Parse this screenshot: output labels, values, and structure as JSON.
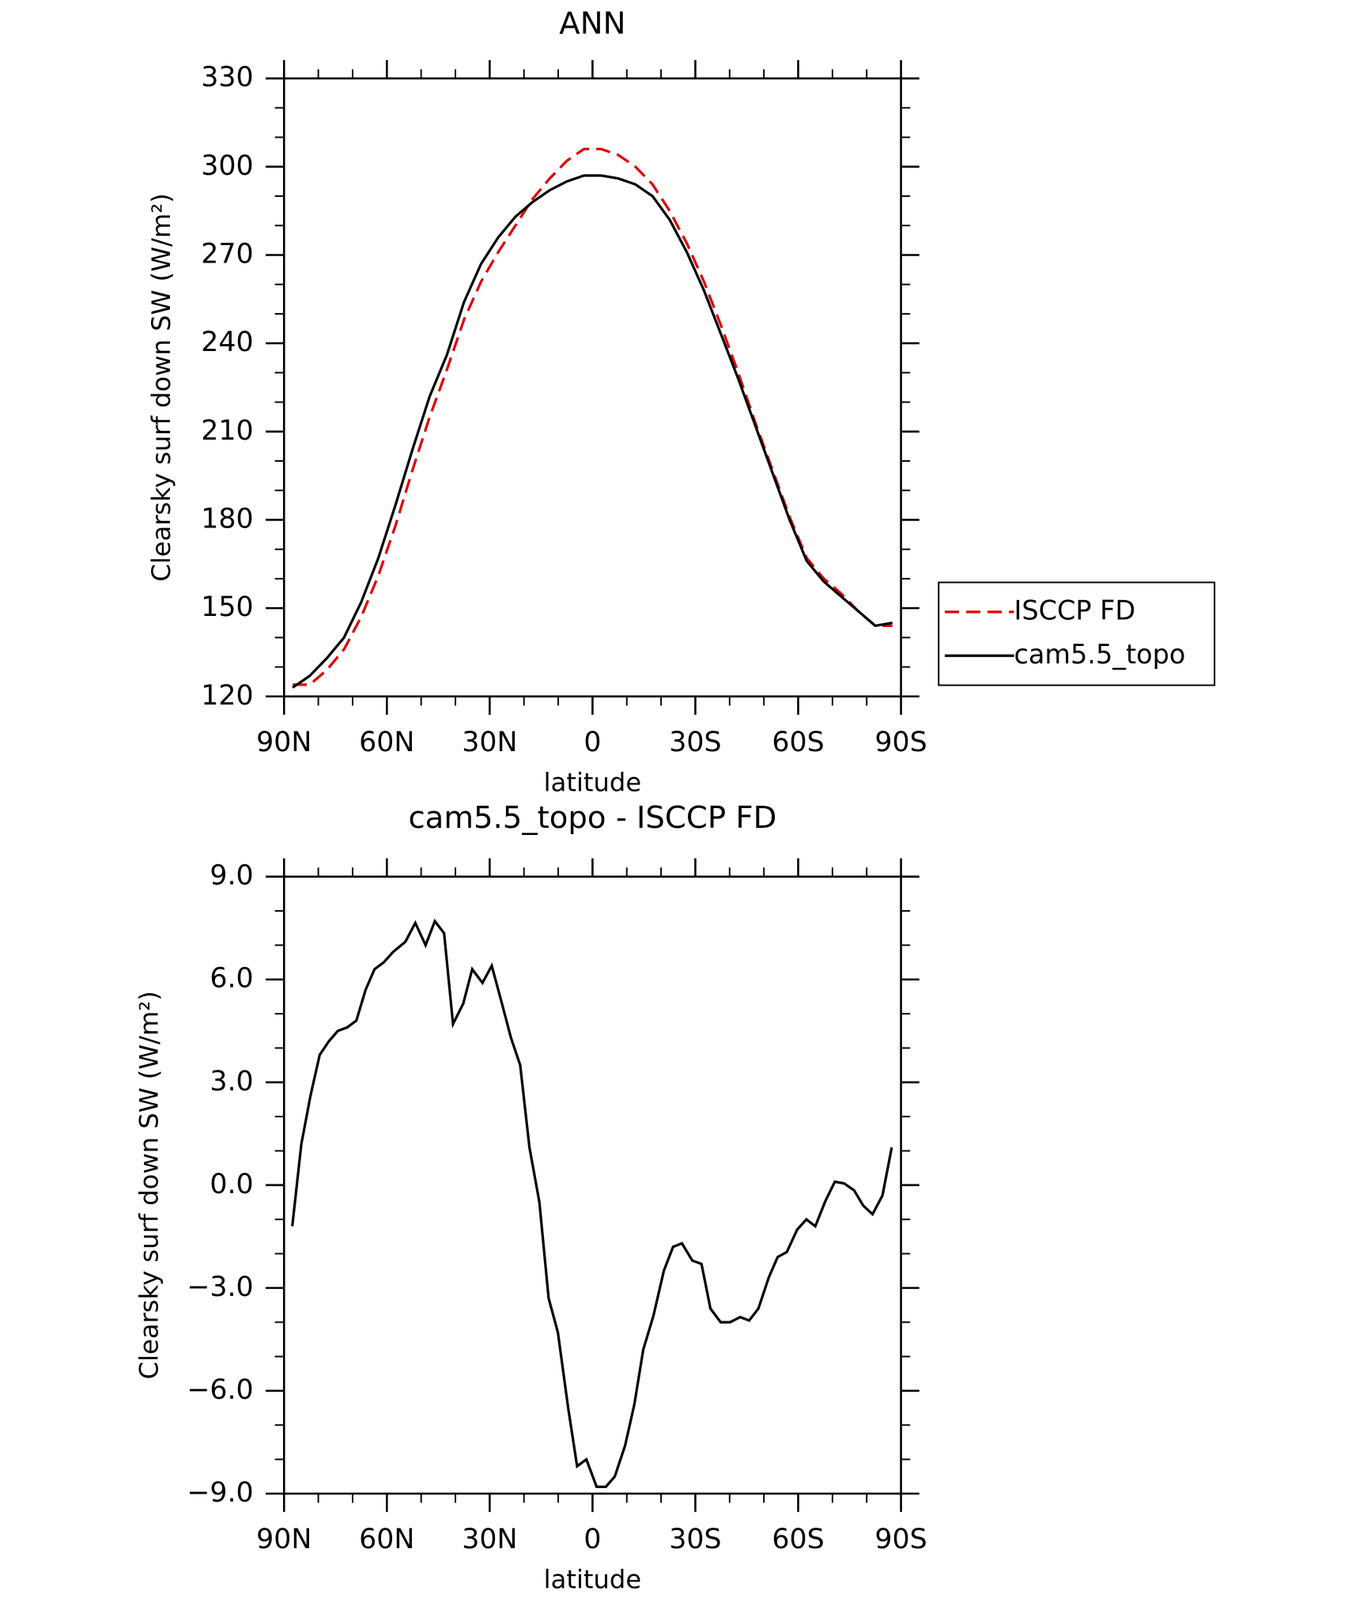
{
  "chart_data": [
    {
      "type": "line",
      "title": "ANN",
      "x_label": "latitude",
      "y_label": "Clearsky surf down SW (W/m²)",
      "x": [
        87.5,
        82.5,
        77.5,
        72.5,
        67.5,
        62.5,
        57.5,
        52.5,
        47.5,
        42.5,
        37.5,
        32.5,
        27.5,
        22.5,
        17.5,
        12.5,
        7.5,
        2.5,
        -2.5,
        -7.5,
        -12.5,
        -17.5,
        -22.5,
        -27.5,
        -32.5,
        -37.5,
        -42.5,
        -47.5,
        -52.5,
        -57.5,
        -62.5,
        -67.5,
        -72.5,
        -77.5,
        -82.5,
        -87.5
      ],
      "series": [
        {
          "name": "ISCCP FD",
          "color": "#e00000",
          "dash": true,
          "values": [
            124,
            124,
            129,
            136,
            147,
            161,
            178,
            197,
            215,
            231,
            248,
            261,
            271,
            280,
            289,
            296,
            302,
            306,
            306,
            304,
            300,
            294,
            285,
            274,
            261,
            246,
            230,
            213,
            197,
            181,
            167,
            160,
            155,
            149,
            144,
            144
          ]
        },
        {
          "name": "cam5.5_topo",
          "color": "#000000",
          "dash": false,
          "values": [
            123,
            127,
            133,
            140,
            152,
            167,
            185,
            204,
            222,
            236,
            254,
            267,
            276,
            283,
            288,
            292,
            295,
            297,
            297,
            296,
            294,
            290,
            282,
            271,
            258,
            243,
            228,
            212,
            196,
            180,
            166,
            159,
            154,
            149,
            144,
            145
          ]
        }
      ],
      "xlim": [
        90,
        -90
      ],
      "xticks": [
        {
          "value": 90,
          "label": "90N"
        },
        {
          "value": 60,
          "label": "60N"
        },
        {
          "value": 30,
          "label": "30N"
        },
        0,
        {
          "value": -30,
          "label": "30S"
        },
        {
          "value": -60,
          "label": "60S"
        },
        {
          "value": -90,
          "label": "90S"
        }
      ],
      "xminor": [
        80,
        70,
        50,
        40,
        20,
        10,
        -10,
        -20,
        -40,
        -50,
        -70,
        -80
      ],
      "ylim": [
        120,
        330
      ],
      "yticks": [
        120,
        150,
        180,
        210,
        240,
        270,
        300,
        330
      ],
      "yminor": [
        130,
        140,
        160,
        170,
        190,
        200,
        220,
        230,
        250,
        260,
        280,
        290,
        310,
        320
      ],
      "legend": "outside-right"
    },
    {
      "type": "line",
      "title": "cam5.5_topo - ISCCP FD",
      "x_label": "latitude",
      "y_label": "Clearsky surf down SW (W/m²)",
      "x": [
        87.6,
        84.95,
        82.3,
        79.6,
        76.9,
        74.3,
        71.6,
        68.9,
        66.2,
        63.6,
        60.9,
        58.2,
        54.6,
        51.7,
        48.7,
        46.0,
        43.3,
        40.7,
        37.7,
        35.1,
        32.1,
        29.4,
        26.7,
        23.8,
        21.1,
        18.4,
        15.5,
        12.8,
        10.1,
        7.1,
        4.5,
        1.8,
        -1.2,
        -3.9,
        -6.5,
        -9.5,
        -12.2,
        -14.8,
        -17.8,
        -20.8,
        -23.5,
        -26.1,
        -29.1,
        -31.8,
        -34.4,
        -37.4,
        -40.1,
        -43.1,
        -45.7,
        -48.4,
        -51.4,
        -54.0,
        -56.7,
        -59.7,
        -62.4,
        -65.0,
        -68.0,
        -70.7,
        -73.4,
        -76.3,
        -79.0,
        -81.7,
        -84.6,
        -87.3
      ],
      "color": "#000000",
      "values": [
        -1.2,
        1.2,
        2.6,
        3.8,
        4.2,
        4.5,
        4.6,
        4.8,
        5.7,
        6.3,
        6.5,
        6.8,
        7.1,
        7.65,
        7.0,
        7.7,
        7.35,
        4.7,
        5.3,
        6.3,
        5.9,
        6.4,
        5.4,
        4.3,
        3.5,
        1.1,
        -0.5,
        -3.3,
        -4.3,
        -6.5,
        -8.2,
        -8.0,
        -8.8,
        -8.8,
        -8.5,
        -7.6,
        -6.4,
        -4.8,
        -3.8,
        -2.5,
        -1.8,
        -1.7,
        -2.2,
        -2.3,
        -3.6,
        -4.0,
        -4.0,
        -3.85,
        -3.95,
        -3.6,
        -2.7,
        -2.1,
        -1.95,
        -1.3,
        -1.0,
        -1.2,
        -0.45,
        0.1,
        0.05,
        -0.15,
        -0.6,
        -0.85,
        -0.3,
        1.1
      ],
      "xlim": [
        90,
        -90
      ],
      "xticks": [
        {
          "value": 90,
          "label": "90N"
        },
        {
          "value": 60,
          "label": "60N"
        },
        {
          "value": 30,
          "label": "30N"
        },
        0,
        {
          "value": -30,
          "label": "30S"
        },
        {
          "value": -60,
          "label": "60S"
        },
        {
          "value": -90,
          "label": "90S"
        }
      ],
      "xminor": [
        80,
        70,
        50,
        40,
        20,
        10,
        -10,
        -20,
        -40,
        -50,
        -70,
        -80
      ],
      "ylim": [
        -9,
        9
      ],
      "yticks": [
        {
          "value": -9,
          "label": "−9.0"
        },
        {
          "value": -6,
          "label": "−6.0"
        },
        {
          "value": -3,
          "label": "−3.0"
        },
        {
          "value": 0,
          "label": "0.0"
        },
        {
          "value": 3,
          "label": "3.0"
        },
        {
          "value": 6,
          "label": "6.0"
        },
        {
          "value": 9,
          "label": "9.0"
        }
      ],
      "yminor": [
        -8,
        -7,
        -5,
        -4,
        -2,
        -1,
        1,
        2,
        4,
        5,
        7,
        8
      ]
    }
  ]
}
